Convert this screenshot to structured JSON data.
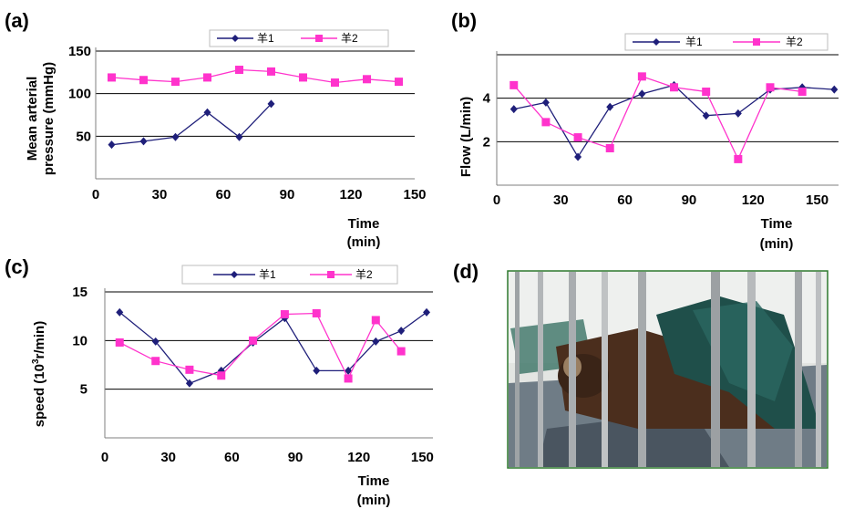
{
  "colors": {
    "series1": "#1f1f7a",
    "series2": "#ff33cc"
  },
  "panels": {
    "a": {
      "label": "(a)"
    },
    "b": {
      "label": "(b)"
    },
    "c": {
      "label": "(c)"
    },
    "d": {
      "label": "(d)",
      "image": "photograph of a goat lying in a metal cage, its body covered by a dark green blanket"
    }
  },
  "chart_data": [
    {
      "id": "a",
      "type": "line",
      "ylabel_line1": "Mean arterial",
      "ylabel_line2": "pressure (mmHg)",
      "xlabel_line1": "Time",
      "xlabel_line2": "(min)",
      "xlim": [
        0,
        150
      ],
      "ylim": [
        0,
        150
      ],
      "xticks": [
        "0",
        "30",
        "60",
        "90",
        "120",
        "150"
      ],
      "yticks": [
        "50",
        "100",
        "150"
      ],
      "grid": "horizontal",
      "legend": {
        "position": "top-right",
        "entries": [
          "羊1",
          "羊2"
        ]
      },
      "series": [
        {
          "name": "羊1",
          "marker": "diamond",
          "x": [
            7.5,
            22.5,
            37.5,
            52.5,
            67.5,
            82.5
          ],
          "y": [
            40,
            44,
            49,
            78,
            49,
            88
          ]
        },
        {
          "name": "羊2",
          "marker": "square",
          "x": [
            7.5,
            22.5,
            37.5,
            52.5,
            67.5,
            82.5,
            97.5,
            112.5,
            127.5,
            142.5
          ],
          "y": [
            119,
            116,
            114,
            119,
            128,
            126,
            119,
            113,
            117,
            114
          ]
        }
      ]
    },
    {
      "id": "b",
      "type": "line",
      "ylabel_line1": "Flow  (L/min)",
      "xlabel_line1": "Time",
      "xlabel_line2": "(min)",
      "xlim": [
        0,
        160
      ],
      "ylim": [
        0,
        6
      ],
      "xticks": [
        "0",
        "30",
        "60",
        "90",
        "120",
        "150"
      ],
      "yticks": [
        "2",
        "4"
      ],
      "grid": "horizontal",
      "legend": {
        "position": "top-right",
        "entries": [
          "羊1",
          "羊2"
        ]
      },
      "series": [
        {
          "name": "羊1",
          "marker": "diamond",
          "x": [
            8,
            23,
            38,
            53,
            68,
            83,
            98,
            113,
            128,
            143,
            158
          ],
          "y": [
            3.5,
            3.8,
            1.3,
            3.6,
            4.2,
            4.6,
            3.2,
            3.3,
            4.4,
            4.5,
            4.4
          ]
        },
        {
          "name": "羊2",
          "marker": "square",
          "x": [
            8,
            23,
            38,
            53,
            68,
            83,
            98,
            113,
            128,
            143
          ],
          "y": [
            4.6,
            2.9,
            2.2,
            1.7,
            5.0,
            4.5,
            4.3,
            1.2,
            4.5,
            4.3
          ]
        }
      ]
    },
    {
      "id": "c",
      "type": "line",
      "ylabel_line1": "speed  (10",
      "ylabel_sup": "3",
      "ylabel_line2": "r/min)",
      "xlabel_line1": "Time",
      "xlabel_line2": "(min)",
      "xlim": [
        0,
        155
      ],
      "ylim": [
        0,
        15
      ],
      "xticks": [
        "0",
        "30",
        "60",
        "90",
        "120",
        "150"
      ],
      "yticks": [
        "5",
        "10",
        "15"
      ],
      "grid": "horizontal",
      "legend": {
        "position": "top-right",
        "entries": [
          "羊1",
          "羊2"
        ]
      },
      "series": [
        {
          "name": "羊1",
          "marker": "diamond",
          "x": [
            7,
            24,
            40,
            55,
            70,
            85,
            100,
            115,
            128,
            140,
            152
          ],
          "y": [
            12.9,
            9.9,
            5.6,
            6.9,
            9.8,
            12.3,
            6.9,
            6.9,
            9.9,
            11.0,
            12.9
          ]
        },
        {
          "name": "羊2",
          "marker": "square",
          "x": [
            7,
            24,
            40,
            55,
            70,
            85,
            100,
            115,
            128,
            140
          ],
          "y": [
            9.8,
            7.9,
            7.0,
            6.4,
            10.0,
            12.7,
            12.8,
            6.1,
            12.1,
            8.9
          ]
        }
      ]
    }
  ]
}
